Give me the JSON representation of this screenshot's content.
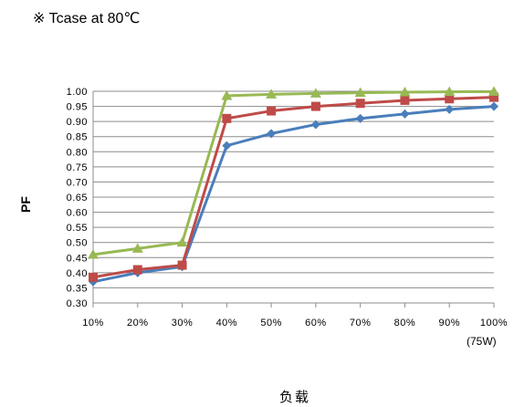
{
  "note": "※ Tcase at 80℃",
  "chart_data": {
    "type": "line",
    "title": "",
    "xlabel": "负载",
    "ylabel": "PF",
    "x_unit_note": "(75W)",
    "categories": [
      "10%",
      "20%",
      "30%",
      "40%",
      "50%",
      "60%",
      "70%",
      "80%",
      "90%",
      "100%"
    ],
    "ylim": [
      0.3,
      1.0
    ],
    "ytick_labels": [
      "1.00",
      "0.95",
      "0.90",
      "0.85",
      "0.80",
      "0.75",
      "0.70",
      "0.65",
      "0.60",
      "0.55",
      "0.50",
      "0.45",
      "0.40",
      "0.35",
      "0.30"
    ],
    "grid": true,
    "series": [
      {
        "color": "#4a7ebb",
        "marker": "diamond",
        "values": [
          0.37,
          0.4,
          0.42,
          0.82,
          0.86,
          0.89,
          0.91,
          0.925,
          0.94,
          0.95
        ]
      },
      {
        "color": "#be4b48",
        "marker": "square",
        "values": [
          0.385,
          0.41,
          0.425,
          0.91,
          0.935,
          0.95,
          0.96,
          0.97,
          0.975,
          0.98
        ]
      },
      {
        "color": "#98b954",
        "marker": "triangle",
        "values": [
          0.46,
          0.48,
          0.5,
          0.985,
          0.99,
          0.993,
          0.995,
          0.997,
          0.998,
          0.999
        ]
      }
    ]
  }
}
